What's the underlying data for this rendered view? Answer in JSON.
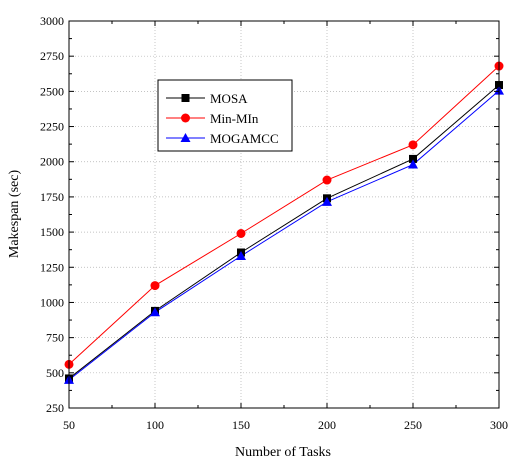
{
  "chart_data": {
    "type": "line",
    "xlabel": "Number of Tasks",
    "ylabel": "Makespan (sec)",
    "x": [
      50,
      100,
      150,
      200,
      250,
      300
    ],
    "xlim": [
      50,
      300
    ],
    "ylim": [
      250,
      3000
    ],
    "xticks": [
      "50",
      "100",
      "150",
      "200",
      "250",
      "300"
    ],
    "yticks": [
      "250",
      "500",
      "750",
      "1000",
      "1250",
      "1500",
      "1750",
      "2000",
      "2250",
      "2500",
      "2750",
      "3000"
    ],
    "grid": "dotted",
    "legend_position": "upper-left",
    "series": [
      {
        "name": "MOSA",
        "values": [
          460,
          940,
          1355,
          1740,
          2020,
          2545
        ],
        "color": "#000000",
        "marker": "square"
      },
      {
        "name": "Min-MIn",
        "values": [
          560,
          1120,
          1490,
          1870,
          2120,
          2680
        ],
        "color": "#ff0000",
        "marker": "circle"
      },
      {
        "name": "MOGAMCC",
        "values": [
          450,
          930,
          1330,
          1715,
          1980,
          2505
        ],
        "color": "#0000ff",
        "marker": "triangle"
      }
    ]
  }
}
